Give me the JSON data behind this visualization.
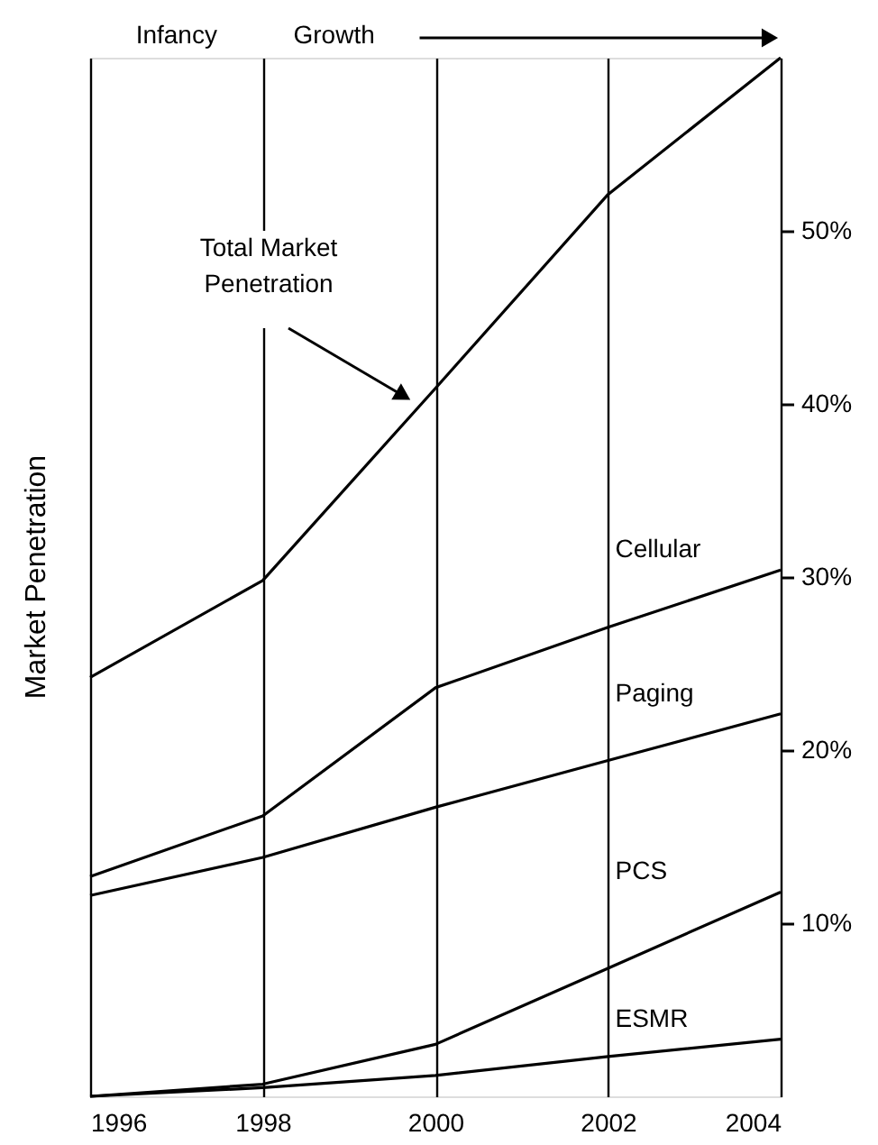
{
  "chart_data": {
    "type": "line",
    "ylabel": "Market Penetration",
    "x": [
      1996,
      1998,
      2000,
      2002,
      2004
    ],
    "series": [
      {
        "color": "#000000",
        "values": [
          24.2,
          29.8,
          40.9,
          52.1,
          60
        ]
      },
      {
        "name": "Cellular",
        "color": "#000000",
        "values": [
          12.7,
          16.2,
          23.6,
          27.1,
          30.4
        ]
      },
      {
        "name": "Paging",
        "color": "#000000",
        "values": [
          11.6,
          13.8,
          16.7,
          19.4,
          22.1
        ]
      },
      {
        "name": "PCS",
        "color": "#000000",
        "values": [
          0,
          0.7,
          3.0,
          7.4,
          11.8
        ]
      },
      {
        "name": "ESMR",
        "color": "#000000",
        "values": [
          0,
          0.5,
          1.2,
          2.3,
          3.3
        ]
      }
    ],
    "xlim": [
      1996,
      2004
    ],
    "ylim": [
      0,
      60
    ],
    "xticks": [
      1996,
      1998,
      2000,
      2002,
      2004
    ],
    "yticks": [
      {
        "value": 10,
        "label": "10%"
      },
      {
        "value": 20,
        "label": "20%"
      },
      {
        "value": 30,
        "label": "30%"
      },
      {
        "value": 40,
        "label": "40%"
      },
      {
        "value": 50,
        "label": "50%"
      }
    ],
    "grid": "x",
    "legend": false,
    "marker": "none",
    "line_style": "solid",
    "annotations": [
      "Total Market Penetration",
      "Infancy",
      "Growth"
    ]
  }
}
